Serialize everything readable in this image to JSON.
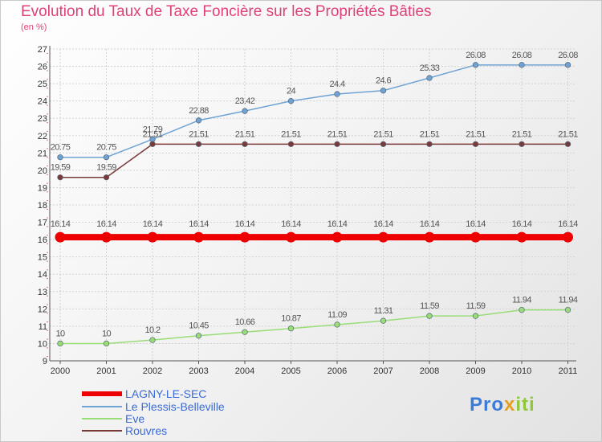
{
  "header": {
    "title": "Evolution du Taux de Taxe Foncière sur les Propriétés Bâties",
    "unit": "(en %)"
  },
  "chart_data": {
    "type": "line",
    "title": "Evolution du Taux de Taxe Foncière sur les Propriétés Bâties",
    "ylabel": "(en %)",
    "xlabel": "",
    "categories": [
      "2000",
      "2001",
      "2002",
      "2003",
      "2004",
      "2005",
      "2006",
      "2007",
      "2008",
      "2009",
      "2010",
      "2011"
    ],
    "ylim": [
      9,
      27
    ],
    "yticks": [
      9,
      10,
      11,
      12,
      13,
      14,
      15,
      16,
      17,
      18,
      19,
      20,
      21,
      22,
      23,
      24,
      25,
      26,
      27
    ],
    "grid": true,
    "series": [
      {
        "name": "LAGNY-LE-SEC",
        "color": "#ee0000",
        "values": [
          16.14,
          16.14,
          16.14,
          16.14,
          16.14,
          16.14,
          16.14,
          16.14,
          16.14,
          16.14,
          16.14,
          16.14
        ],
        "labels": [
          "16.14",
          "16.14",
          "16.14",
          "16.14",
          "16.14",
          "16.14",
          "16.14",
          "16.14",
          "16.14",
          "16.14",
          "16.14",
          "16.14"
        ]
      },
      {
        "name": "Le Plessis-Belleville",
        "color": "#6fa3d4",
        "values": [
          20.75,
          20.75,
          21.79,
          22.88,
          23.42,
          24,
          24.4,
          24.6,
          25.33,
          26.08,
          26.08,
          26.08
        ],
        "labels": [
          "20.75",
          "20.75",
          "21.79",
          "22.88",
          "23.42",
          "24",
          "24.4",
          "24.6",
          "25.33",
          "26.08",
          "26.08",
          "26.08"
        ]
      },
      {
        "name": "Eve",
        "color": "#99dd77",
        "values": [
          10,
          10,
          10.2,
          10.45,
          10.66,
          10.87,
          11.09,
          11.31,
          11.59,
          11.59,
          11.94,
          11.94
        ],
        "labels": [
          "10",
          "10",
          "10.2",
          "10.45",
          "10.66",
          "10.87",
          "11.09",
          "11.31",
          "11.59",
          "11.59",
          "11.94",
          "11.94"
        ]
      },
      {
        "name": "Rouvres",
        "color": "#7a3a3a",
        "values": [
          19.59,
          19.59,
          21.51,
          21.51,
          21.51,
          21.51,
          21.51,
          21.51,
          21.51,
          21.51,
          21.51,
          21.51
        ],
        "labels": [
          "19.59",
          "19.59",
          "21.51",
          "21.51",
          "21.51",
          "21.51",
          "21.51",
          "21.51",
          "21.51",
          "21.51",
          "21.51",
          "21.51"
        ]
      }
    ],
    "legend_position": "bottom-left"
  },
  "legend": {
    "items": [
      {
        "label": "LAGNY-LE-SEC",
        "color": "#ee0000"
      },
      {
        "label": "Le Plessis-Belleville",
        "color": "#6fa3d4"
      },
      {
        "label": "Eve",
        "color": "#99dd77"
      },
      {
        "label": "Rouvres",
        "color": "#7a3a3a"
      }
    ]
  },
  "logo": {
    "text": "Proxiti",
    "part1": "Pro",
    "part2": "x",
    "part3": "iti"
  }
}
